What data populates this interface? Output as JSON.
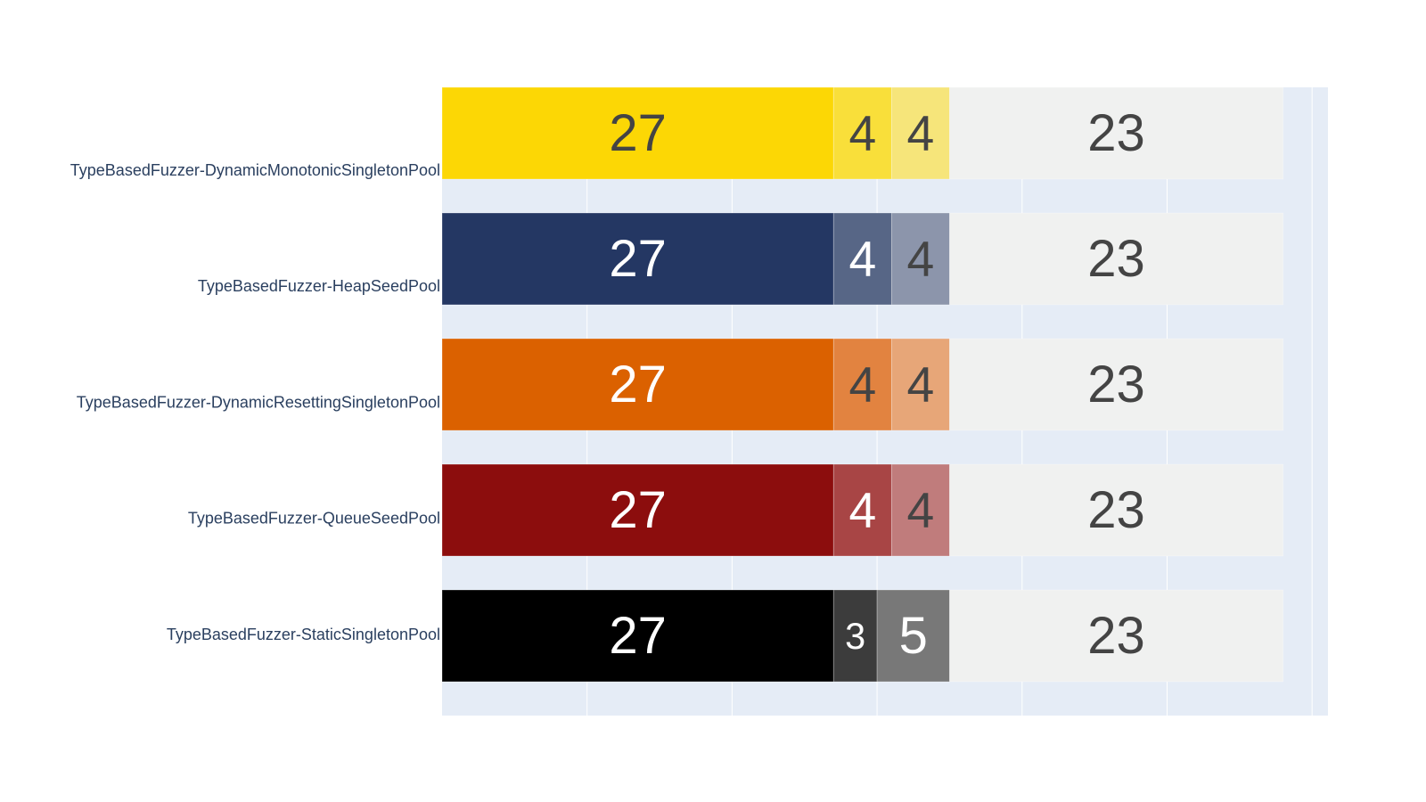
{
  "chart_data": {
    "type": "bar",
    "orientation": "horizontal",
    "barmode": "stack",
    "title": "",
    "xlabel": "",
    "ylabel": "",
    "xlim": [
      0,
      60
    ],
    "x_gridlines": [
      0,
      10,
      20,
      30,
      40,
      50,
      60
    ],
    "grid": true,
    "categories": [
      "TypeBasedFuzzer-DynamicMonotonicSingletonPool",
      "TypeBasedFuzzer-HeapSeedPool",
      "TypeBasedFuzzer-DynamicResettingSingletonPool",
      "TypeBasedFuzzer-QueueSeedPool",
      "TypeBasedFuzzer-StaticSingletonPool"
    ],
    "series": [
      {
        "values": [
          27,
          27,
          27,
          27,
          27
        ],
        "colors": [
          "#FCD705",
          "#243763",
          "#DB6100",
          "#8C0D0D",
          "#000000"
        ],
        "label_colors": [
          "#444444",
          "#ffffff",
          "#ffffff",
          "#ffffff",
          "#ffffff"
        ]
      },
      {
        "values": [
          4,
          4,
          4,
          4,
          3
        ],
        "colors": [
          "#F9DF3A",
          "#576686",
          "#E28340",
          "#A84545",
          "#3C3C3C"
        ],
        "label_colors": [
          "#444444",
          "#ffffff",
          "#444444",
          "#ffffff",
          "#ffffff"
        ]
      },
      {
        "values": [
          4,
          4,
          4,
          4,
          5
        ],
        "colors": [
          "#F6E57A",
          "#8C95AB",
          "#E7A678",
          "#C07C7C",
          "#787878"
        ],
        "label_colors": [
          "#444444",
          "#444444",
          "#444444",
          "#444444",
          "#ffffff"
        ]
      },
      {
        "values": [
          23,
          23,
          23,
          23,
          23
        ],
        "colors": [
          "#F0F1F0",
          "#F0F1F0",
          "#F0F1F0",
          "#F0F1F0",
          "#F0F1F0"
        ],
        "label_colors": [
          "#444444",
          "#444444",
          "#444444",
          "#444444",
          "#444444"
        ]
      }
    ],
    "plot_background": "#E5ECF6",
    "gridline_color": "#ffffff",
    "tick_label_color": "#2A3F5F"
  }
}
